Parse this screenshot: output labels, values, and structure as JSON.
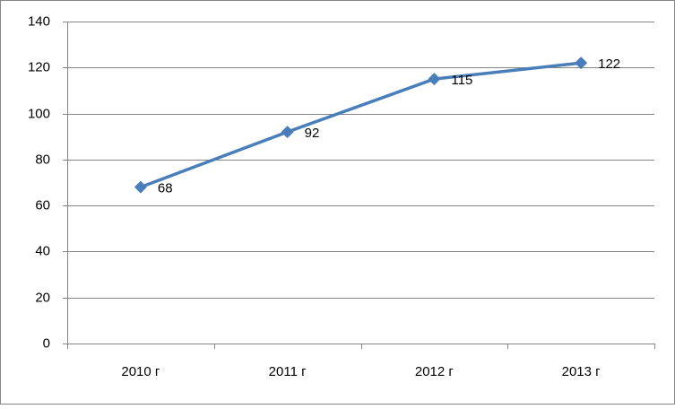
{
  "chart_data": {
    "type": "line",
    "categories": [
      "2010 г",
      "2011 г",
      "2012 г",
      "2013 г"
    ],
    "values": [
      68,
      92,
      115,
      122
    ],
    "color": "#4a7ebb",
    "ylim": [
      0,
      140
    ],
    "yticks": [
      0,
      20,
      40,
      60,
      80,
      100,
      120,
      140
    ],
    "grid": true
  }
}
